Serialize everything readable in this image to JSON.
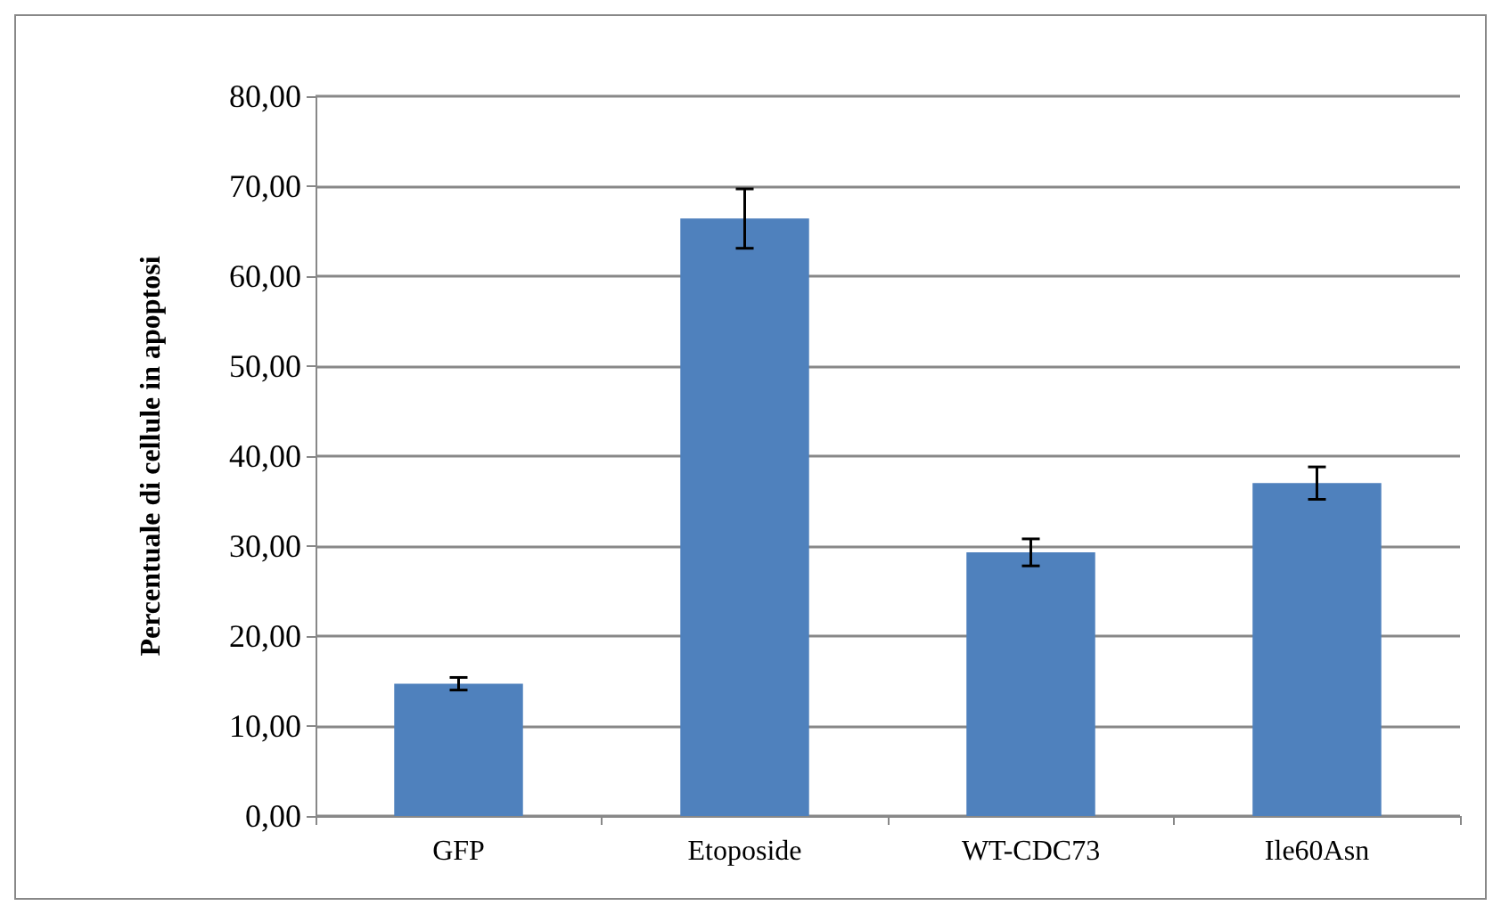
{
  "chart_data": {
    "type": "bar",
    "ylabel": "Percentuale di cellule in apoptosi",
    "categories": [
      "GFP",
      "Etoposide",
      "WT-CDC73",
      "Ile60Asn"
    ],
    "values": [
      14.7,
      66.4,
      29.3,
      37.0
    ],
    "errors": [
      0.7,
      3.3,
      1.5,
      1.8
    ],
    "color": "#4f81bd",
    "ylim": [
      0,
      80
    ],
    "yticks": [
      {
        "value": 0,
        "label": "0,00"
      },
      {
        "value": 10,
        "label": "10,00"
      },
      {
        "value": 20,
        "label": "20,00"
      },
      {
        "value": 30,
        "label": "30,00"
      },
      {
        "value": 40,
        "label": "40,00"
      },
      {
        "value": 50,
        "label": "50,00"
      },
      {
        "value": 60,
        "label": "60,00"
      },
      {
        "value": 70,
        "label": "70,00"
      },
      {
        "value": 80,
        "label": "80,00"
      }
    ],
    "grid": "y"
  }
}
